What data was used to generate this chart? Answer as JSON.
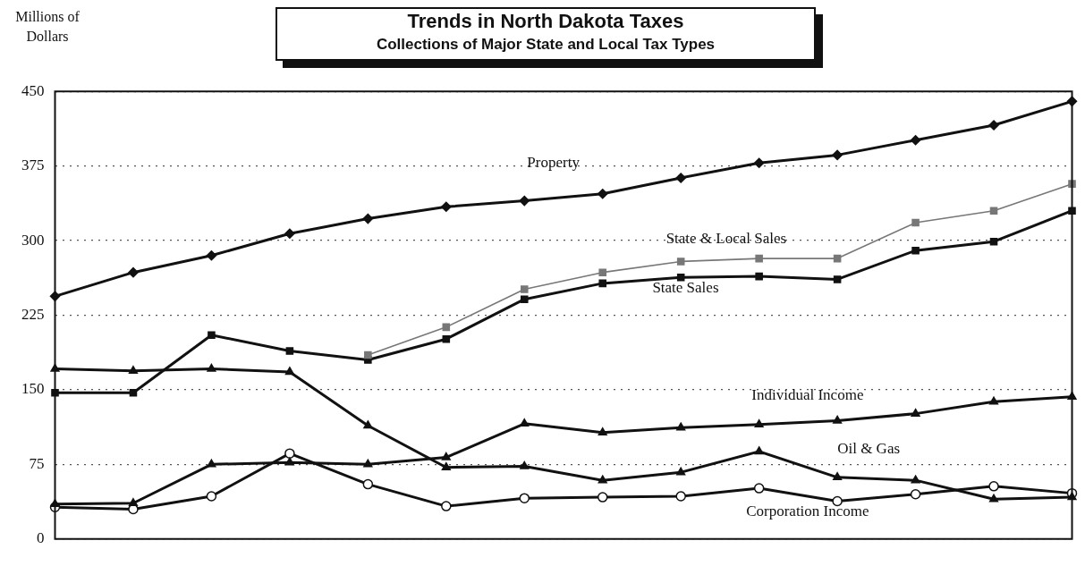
{
  "chart_data": {
    "type": "line",
    "title": "Trends in North Dakota Taxes",
    "subtitle": "Collections of Major State and Local Tax Types",
    "ylabel": "Millions of Dollars",
    "categories": [
      null,
      null,
      null,
      null,
      null,
      null,
      null,
      null,
      null,
      null,
      null,
      null,
      null,
      null
    ],
    "ylim": [
      0,
      450
    ],
    "yticks": [
      0,
      75,
      150,
      225,
      300,
      375,
      450
    ],
    "grid": "y",
    "legend": false,
    "line_style": "solid",
    "series": [
      {
        "name": "Property",
        "color": "#111111",
        "marker": "diamond",
        "values": [
          244,
          268,
          285,
          307,
          322,
          334,
          340,
          347,
          363,
          378,
          386,
          401,
          416,
          440
        ]
      },
      {
        "name": "State & Local Sales",
        "color": "#777777",
        "marker": "square",
        "values": [
          null,
          null,
          null,
          null,
          185,
          213,
          251,
          268,
          279,
          282,
          282,
          318,
          330,
          357
        ]
      },
      {
        "name": "State Sales",
        "color": "#111111",
        "marker": "square",
        "values": [
          147,
          147,
          205,
          189,
          180,
          201,
          241,
          257,
          263,
          264,
          261,
          290,
          299,
          330
        ]
      },
      {
        "name": "Individual Income",
        "color": "#111111",
        "marker": "triangle",
        "values": [
          35,
          36,
          75,
          77,
          75,
          82,
          116,
          107,
          112,
          115,
          119,
          126,
          138,
          143
        ]
      },
      {
        "name": "Oil & Gas",
        "color": "#111111",
        "marker": "triangle",
        "values": [
          171,
          169,
          171,
          168,
          114,
          72,
          73,
          59,
          67,
          88,
          62,
          59,
          40,
          42
        ]
      },
      {
        "name": "Corporation Income",
        "color": "#111111",
        "marker": "circle",
        "values": [
          32,
          30,
          43,
          86,
          55,
          33,
          41,
          42,
          43,
          51,
          38,
          45,
          53,
          46
        ]
      }
    ]
  }
}
